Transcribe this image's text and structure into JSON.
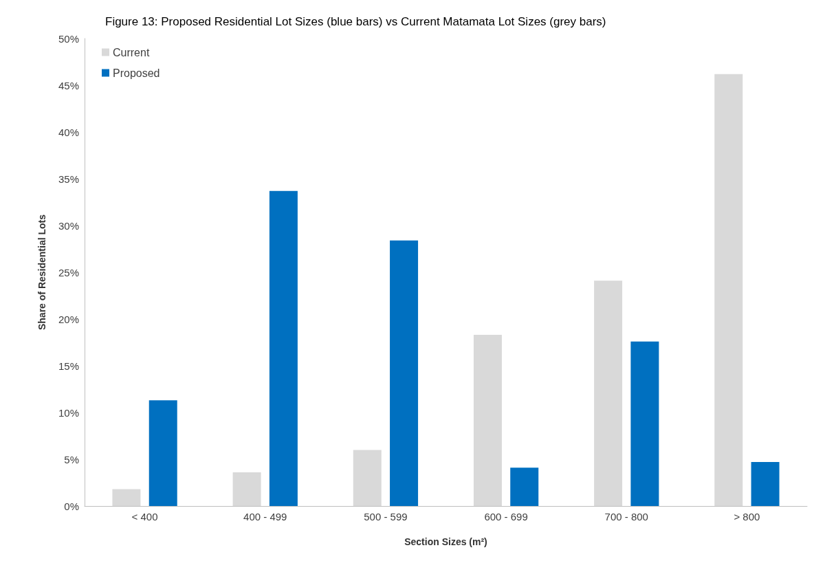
{
  "chart_data": {
    "type": "bar",
    "title": "Figure 13: Proposed Residential Lot Sizes (blue bars) vs Current Matamata Lot Sizes (grey bars)",
    "xlabel": "Section Sizes (m²)",
    "ylabel": "Share of Residential Lots",
    "categories": [
      "< 400",
      "400 - 499",
      "500 - 599",
      "600 - 699",
      "700 - 800",
      "> 800"
    ],
    "series": [
      {
        "name": "Current",
        "color": "#d9d9d9",
        "values": [
          1.8,
          3.6,
          6.0,
          18.3,
          24.1,
          46.2
        ]
      },
      {
        "name": "Proposed",
        "color": "#0070c0",
        "values": [
          11.3,
          33.7,
          28.4,
          4.1,
          17.6,
          4.7
        ]
      }
    ],
    "ylim": [
      0,
      50
    ],
    "yticks": [
      {
        "value": 0,
        "label": "0%"
      },
      {
        "value": 5,
        "label": "5%"
      },
      {
        "value": 10,
        "label": "10%"
      },
      {
        "value": 15,
        "label": "15%"
      },
      {
        "value": 20,
        "label": "20%"
      },
      {
        "value": 25,
        "label": "25%"
      },
      {
        "value": 30,
        "label": "30%"
      },
      {
        "value": 35,
        "label": "35%"
      },
      {
        "value": 40,
        "label": "40%"
      },
      {
        "value": 45,
        "label": "45%"
      },
      {
        "value": 50,
        "label": "50%"
      }
    ],
    "grid": false,
    "legend": "top left"
  }
}
